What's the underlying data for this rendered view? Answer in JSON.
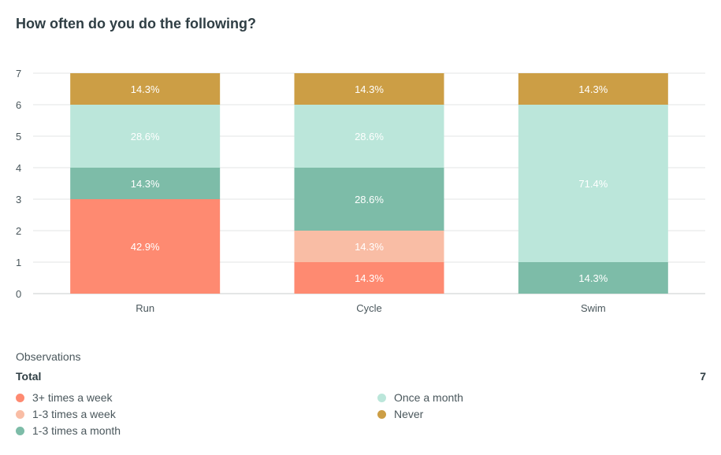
{
  "chart_data": {
    "type": "bar",
    "stacked": true,
    "title": "How often do you do the following?",
    "categories": [
      "Run",
      "Cycle",
      "Swim"
    ],
    "ylim": [
      0,
      7
    ],
    "yticks": [
      "0",
      "1",
      "2",
      "3",
      "4",
      "5",
      "6",
      "7"
    ],
    "grid": true,
    "series": [
      {
        "name": "3+ times a week",
        "color": "#fe8a71",
        "values": [
          3,
          1,
          0
        ],
        "labels": [
          "42.9%",
          "14.3%",
          ""
        ]
      },
      {
        "name": "1-3 times a week",
        "color": "#f9bda5",
        "values": [
          0,
          1,
          0
        ],
        "labels": [
          "",
          "14.3%",
          ""
        ]
      },
      {
        "name": "1-3 times a month",
        "color": "#7dbca8",
        "values": [
          1,
          2,
          1
        ],
        "labels": [
          "14.3%",
          "28.6%",
          "14.3%"
        ]
      },
      {
        "name": "Once a month",
        "color": "#bbe6da",
        "values": [
          2,
          2,
          5
        ],
        "labels": [
          "28.6%",
          "28.6%",
          "71.4%"
        ]
      },
      {
        "name": "Never",
        "color": "#cc9e45",
        "values": [
          1,
          1,
          1
        ],
        "labels": [
          "14.3%",
          "14.3%",
          "14.3%"
        ]
      }
    ]
  },
  "observations": {
    "label": "Observations",
    "total_label": "Total",
    "total_value": "7"
  }
}
